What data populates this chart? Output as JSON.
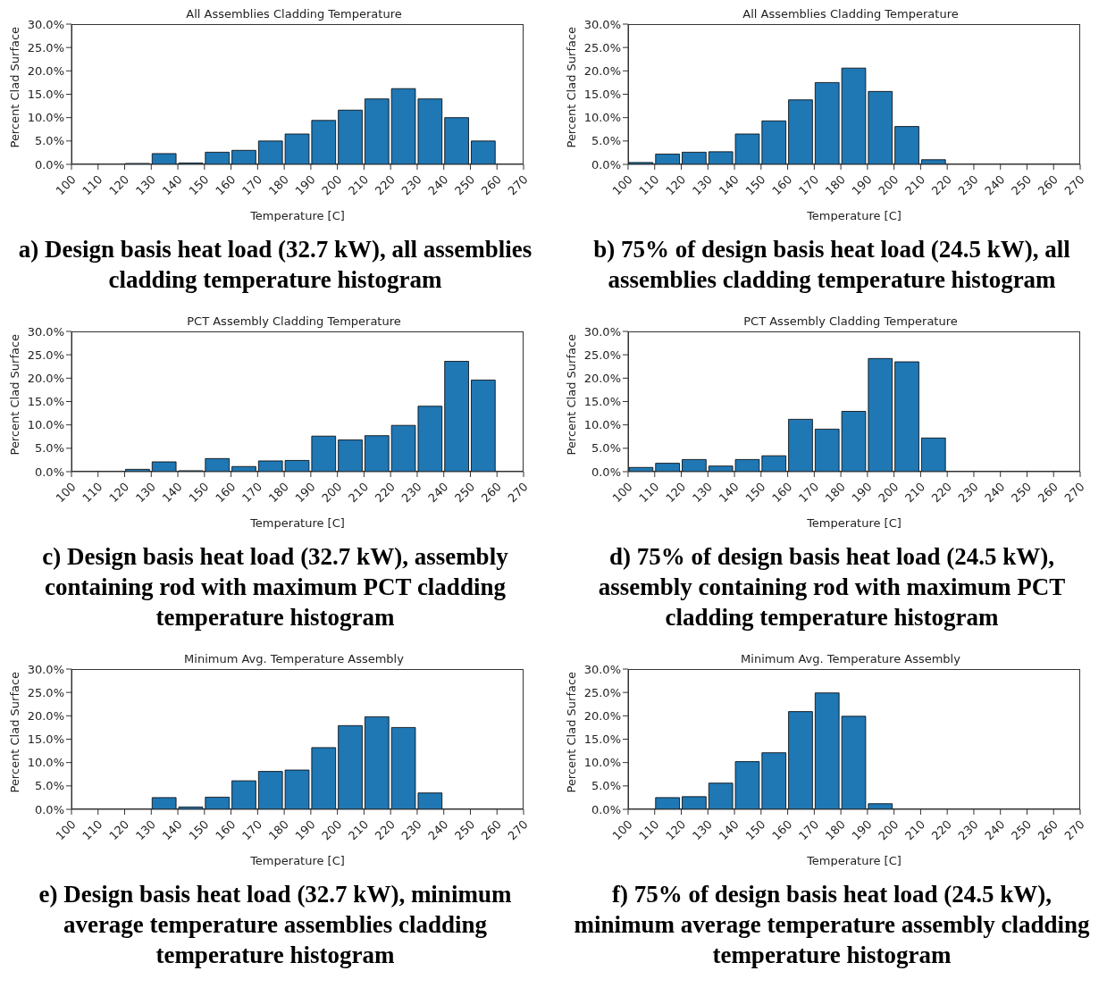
{
  "chart_data": [
    {
      "type": "histogram",
      "title": "All Assemblies Cladding Temperature",
      "xlabel": "Temperature [C]",
      "ylabel": "Percent Clad Surface",
      "color": "#1f77b4",
      "bins": [
        100,
        110,
        120,
        130,
        140,
        150,
        160,
        170,
        180,
        190,
        200,
        210,
        220,
        230,
        240,
        250,
        260,
        270
      ],
      "values": [
        0,
        0,
        0.2,
        2.3,
        0.3,
        2.6,
        3.0,
        5.0,
        6.5,
        9.4,
        11.6,
        14.0,
        16.2,
        14.0,
        10.0,
        5.0,
        0
      ],
      "xlim": [
        100,
        270
      ],
      "xticks": [
        100,
        110,
        120,
        130,
        140,
        150,
        160,
        170,
        180,
        190,
        200,
        210,
        220,
        230,
        240,
        250,
        260,
        270
      ],
      "ylim": [
        0,
        30
      ],
      "yticks": [
        {
          "value": 0,
          "label": "0.0%"
        },
        {
          "value": 5,
          "label": "5.0%"
        },
        {
          "value": 10,
          "label": "10.0%"
        },
        {
          "value": 15,
          "label": "15.0%"
        },
        {
          "value": 20,
          "label": "20.0%"
        },
        {
          "value": 25,
          "label": "25.0%"
        },
        {
          "value": 30,
          "label": "30.0%"
        }
      ],
      "annotations": [
        "a) Design basis heat load (32.7 kW), all assemblies cladding temperature histogram"
      ]
    },
    {
      "type": "histogram",
      "title": "All Assemblies Cladding Temperature",
      "xlabel": "Temperature [C]",
      "ylabel": "Percent Clad Surface",
      "color": "#1f77b4",
      "bins": [
        100,
        110,
        120,
        130,
        140,
        150,
        160,
        170,
        180,
        190,
        200,
        210,
        220,
        230,
        240,
        250,
        260,
        270
      ],
      "values": [
        0.4,
        2.2,
        2.6,
        2.7,
        6.5,
        9.3,
        13.8,
        17.5,
        20.6,
        15.6,
        8.1,
        1.0,
        0,
        0,
        0,
        0,
        0
      ],
      "xlim": [
        100,
        270
      ],
      "xticks": [
        100,
        110,
        120,
        130,
        140,
        150,
        160,
        170,
        180,
        190,
        200,
        210,
        220,
        230,
        240,
        250,
        260,
        270
      ],
      "ylim": [
        0,
        30
      ],
      "yticks": [
        {
          "value": 0,
          "label": "0.0%"
        },
        {
          "value": 5,
          "label": "5.0%"
        },
        {
          "value": 10,
          "label": "10.0%"
        },
        {
          "value": 15,
          "label": "15.0%"
        },
        {
          "value": 20,
          "label": "20.0%"
        },
        {
          "value": 25,
          "label": "25.0%"
        },
        {
          "value": 30,
          "label": "30.0%"
        }
      ],
      "annotations": [
        "b) 75% of design basis heat load (24.5 kW), all assemblies cladding temperature histogram"
      ]
    },
    {
      "type": "histogram",
      "title": "PCT Assembly Cladding Temperature",
      "xlabel": "Temperature [C]",
      "ylabel": "Percent Clad Surface",
      "color": "#1f77b4",
      "bins": [
        100,
        110,
        120,
        130,
        140,
        150,
        160,
        170,
        180,
        190,
        200,
        210,
        220,
        230,
        240,
        250,
        260,
        270
      ],
      "values": [
        0,
        0,
        0.5,
        2.1,
        0.2,
        2.8,
        1.1,
        2.3,
        2.4,
        7.6,
        6.8,
        7.7,
        9.9,
        14.0,
        23.6,
        19.6,
        0
      ],
      "xlim": [
        100,
        270
      ],
      "xticks": [
        100,
        110,
        120,
        130,
        140,
        150,
        160,
        170,
        180,
        190,
        200,
        210,
        220,
        230,
        240,
        250,
        260,
        270
      ],
      "ylim": [
        0,
        30
      ],
      "yticks": [
        {
          "value": 0,
          "label": "0.0%"
        },
        {
          "value": 5,
          "label": "5.0%"
        },
        {
          "value": 10,
          "label": "10.0%"
        },
        {
          "value": 15,
          "label": "15.0%"
        },
        {
          "value": 20,
          "label": "20.0%"
        },
        {
          "value": 25,
          "label": "25.0%"
        },
        {
          "value": 30,
          "label": "30.0%"
        }
      ],
      "annotations": [
        "c) Design basis heat load (32.7 kW), assembly containing rod with maximum PCT cladding temperature histogram"
      ]
    },
    {
      "type": "histogram",
      "title": "PCT Assembly Cladding Temperature",
      "xlabel": "Temperature [C]",
      "ylabel": "Percent Clad Surface",
      "color": "#1f77b4",
      "bins": [
        100,
        110,
        120,
        130,
        140,
        150,
        160,
        170,
        180,
        190,
        200,
        210,
        220,
        230,
        240,
        250,
        260,
        270
      ],
      "values": [
        0.9,
        1.8,
        2.6,
        1.2,
        2.6,
        3.4,
        11.2,
        9.1,
        12.9,
        24.2,
        23.5,
        7.2,
        0,
        0,
        0,
        0,
        0
      ],
      "xlim": [
        100,
        270
      ],
      "xticks": [
        100,
        110,
        120,
        130,
        140,
        150,
        160,
        170,
        180,
        190,
        200,
        210,
        220,
        230,
        240,
        250,
        260,
        270
      ],
      "ylim": [
        0,
        30
      ],
      "yticks": [
        {
          "value": 0,
          "label": "0.0%"
        },
        {
          "value": 5,
          "label": "5.0%"
        },
        {
          "value": 10,
          "label": "10.0%"
        },
        {
          "value": 15,
          "label": "15.0%"
        },
        {
          "value": 20,
          "label": "20.0%"
        },
        {
          "value": 25,
          "label": "25.0%"
        },
        {
          "value": 30,
          "label": "30.0%"
        }
      ],
      "annotations": [
        "d) 75% of design basis heat load (24.5 kW), assembly containing rod with maximum PCT cladding temperature histogram"
      ]
    },
    {
      "type": "histogram",
      "title": "Minimum Avg. Temperature Assembly",
      "xlabel": "Temperature [C]",
      "ylabel": "Percent Clad Surface",
      "color": "#1f77b4",
      "bins": [
        100,
        110,
        120,
        130,
        140,
        150,
        160,
        170,
        180,
        190,
        200,
        210,
        220,
        230,
        240,
        250,
        260,
        270
      ],
      "values": [
        0,
        0,
        0,
        2.5,
        0.5,
        2.6,
        6.1,
        8.1,
        8.4,
        13.2,
        17.9,
        19.8,
        17.5,
        3.5,
        0,
        0,
        0
      ],
      "xlim": [
        100,
        270
      ],
      "xticks": [
        100,
        110,
        120,
        130,
        140,
        150,
        160,
        170,
        180,
        190,
        200,
        210,
        220,
        230,
        240,
        250,
        260,
        270
      ],
      "ylim": [
        0,
        30
      ],
      "yticks": [
        {
          "value": 0,
          "label": "0.0%"
        },
        {
          "value": 5,
          "label": "5.0%"
        },
        {
          "value": 10,
          "label": "10.0%"
        },
        {
          "value": 15,
          "label": "15.0%"
        },
        {
          "value": 20,
          "label": "20.0%"
        },
        {
          "value": 25,
          "label": "25.0%"
        },
        {
          "value": 30,
          "label": "30.0%"
        }
      ],
      "annotations": [
        "e) Design basis heat load (32.7 kW), minimum average temperature assemblies cladding temperature histogram"
      ]
    },
    {
      "type": "histogram",
      "title": "Minimum Avg. Temperature Assembly",
      "xlabel": "Temperature [C]",
      "ylabel": "Percent Clad Surface",
      "color": "#1f77b4",
      "bins": [
        100,
        110,
        120,
        130,
        140,
        150,
        160,
        170,
        180,
        190,
        200,
        210,
        220,
        230,
        240,
        250,
        260,
        270
      ],
      "values": [
        0,
        2.5,
        2.7,
        5.6,
        10.2,
        12.1,
        20.9,
        24.9,
        19.9,
        1.2,
        0,
        0,
        0,
        0,
        0,
        0,
        0
      ],
      "xlim": [
        100,
        270
      ],
      "xticks": [
        100,
        110,
        120,
        130,
        140,
        150,
        160,
        170,
        180,
        190,
        200,
        210,
        220,
        230,
        240,
        250,
        260,
        270
      ],
      "ylim": [
        0,
        30
      ],
      "yticks": [
        {
          "value": 0,
          "label": "0.0%"
        },
        {
          "value": 5,
          "label": "5.0%"
        },
        {
          "value": 10,
          "label": "10.0%"
        },
        {
          "value": 15,
          "label": "15.0%"
        },
        {
          "value": 20,
          "label": "20.0%"
        },
        {
          "value": 25,
          "label": "25.0%"
        },
        {
          "value": 30,
          "label": "30.0%"
        }
      ],
      "annotations": [
        "f) 75% of design basis heat load (24.5 kW), minimum average temperature assembly cladding temperature histogram"
      ]
    }
  ]
}
